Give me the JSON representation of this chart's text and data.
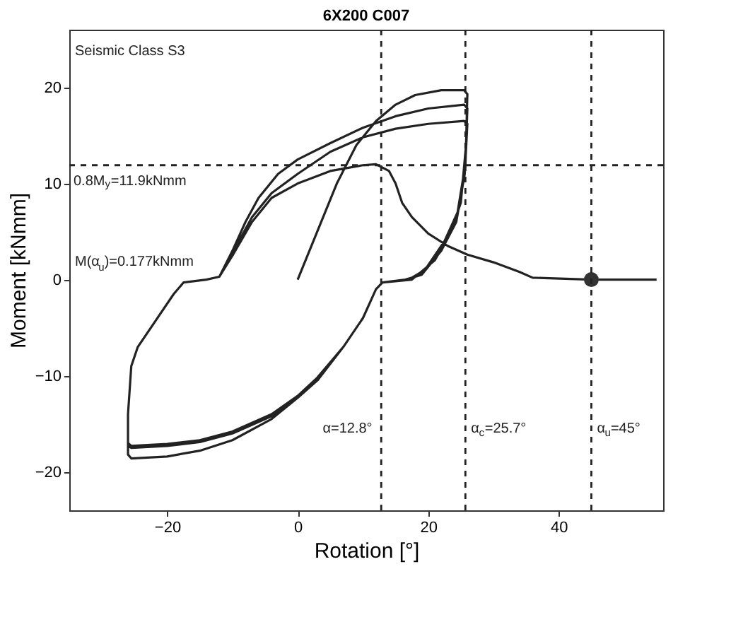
{
  "chart_data": {
    "type": "line",
    "title": "6X200 C007",
    "xlabel": "Rotation [°]",
    "ylabel": "Moment [kNmm]",
    "xlim": [
      -35,
      56
    ],
    "ylim": [
      -24,
      26
    ],
    "xticks": [
      -20,
      0,
      20,
      40
    ],
    "yticks": [
      -20,
      -10,
      0,
      10,
      20
    ],
    "grid": false,
    "line_style": "solid",
    "annotations": [
      "Seismic Class S3",
      "M(α$_{u}$)=0.177kNmm"
    ],
    "ref_lines": [
      {
        "axis": "y",
        "value": 11.9,
        "label": "0.8M$_{y}$=11.9kNmm",
        "line_style": "dashed",
        "color": "#222222"
      },
      {
        "axis": "x",
        "value": 12.8,
        "label": "α=12.8°",
        "line_style": "dashed",
        "color": "#222222"
      },
      {
        "axis": "x",
        "value": 25.7,
        "label": "α$_{c}$=25.7°",
        "line_style": "dashed",
        "color": "#222222"
      },
      {
        "axis": "x",
        "value": 45,
        "label": "α$_{u}$=45°",
        "line_style": "dashed",
        "color": "#222222"
      }
    ],
    "series": [
      {
        "color": "#222222",
        "marker": "none",
        "x": [
          0,
          3,
          6,
          9,
          12,
          15,
          18,
          22,
          25.5,
          26,
          25.8,
          25,
          23.5,
          21,
          17.5,
          13,
          12,
          10,
          7,
          3,
          0,
          -4,
          -10,
          -15,
          -20,
          -25.5,
          -26,
          -26,
          -25.5,
          -24.5,
          -22,
          -19,
          -17.5,
          -14,
          -12,
          -10,
          -8,
          -6,
          -3,
          0,
          5,
          10,
          15,
          20,
          25.5,
          26,
          25.7,
          24.5,
          22.5,
          19.5,
          17,
          13,
          12,
          10,
          7,
          3,
          0,
          -4,
          -10,
          -15,
          -20,
          -25.5,
          -26,
          -26,
          -25.5,
          -24.5,
          -22,
          -19,
          -17.5,
          -14,
          -12,
          -10,
          -7,
          -4,
          0,
          5,
          10,
          15,
          20,
          25.5,
          26,
          25.6,
          24.3,
          22,
          19,
          16.5,
          13,
          12,
          10,
          7,
          3,
          0,
          -4,
          -10,
          -15,
          -20,
          -25.5,
          -26,
          -26,
          -25.5,
          -24.5,
          -22,
          -19,
          -17.5,
          -14,
          -12,
          -10,
          -7,
          -4,
          0,
          5,
          10,
          12,
          14,
          15,
          16,
          17.5,
          20,
          23,
          26,
          30,
          34,
          36,
          45,
          55
        ],
        "values": [
          0,
          5,
          10,
          14,
          16.5,
          18.2,
          19.2,
          19.7,
          19.7,
          19.3,
          14,
          8,
          5,
          2,
          0,
          -0.3,
          -1,
          -4,
          -7,
          -10.5,
          -12.3,
          -14.5,
          -16.7,
          -17.8,
          -18.4,
          -18.6,
          -18.2,
          -14,
          -9,
          -7,
          -4.5,
          -1.5,
          -0.3,
          0,
          0.3,
          3,
          6,
          8.5,
          11,
          12.5,
          14.2,
          15.8,
          17,
          17.8,
          18.2,
          17.8,
          12,
          7,
          4,
          1,
          0,
          -0.3,
          -1,
          -4,
          -7,
          -10.3,
          -12.2,
          -14.2,
          -16,
          -16.9,
          -17.3,
          -17.5,
          -17.3,
          -14,
          -9,
          -7,
          -4.5,
          -1.5,
          -0.3,
          0,
          0.3,
          2.8,
          6.5,
          9,
          11,
          13.3,
          14.8,
          15.7,
          16.2,
          16.5,
          16.2,
          11,
          6,
          3,
          0.5,
          0,
          -0.3,
          -1,
          -4,
          -7,
          -10.2,
          -12.1,
          -14,
          -15.8,
          -16.7,
          -17.1,
          -17.3,
          -17,
          -14,
          -9,
          -7,
          -4.5,
          -1.5,
          -0.3,
          0,
          0.3,
          2.5,
          6,
          8.5,
          10,
          11.3,
          11.9,
          12,
          11.3,
          10,
          8,
          6.5,
          4.8,
          3.5,
          2.6,
          1.8,
          0.8,
          0.2,
          0,
          0
        ]
      },
      {
        "type": "scatter",
        "color": "#333333",
        "marker": "circle",
        "x": [
          45
        ],
        "values": [
          0
        ]
      }
    ]
  }
}
